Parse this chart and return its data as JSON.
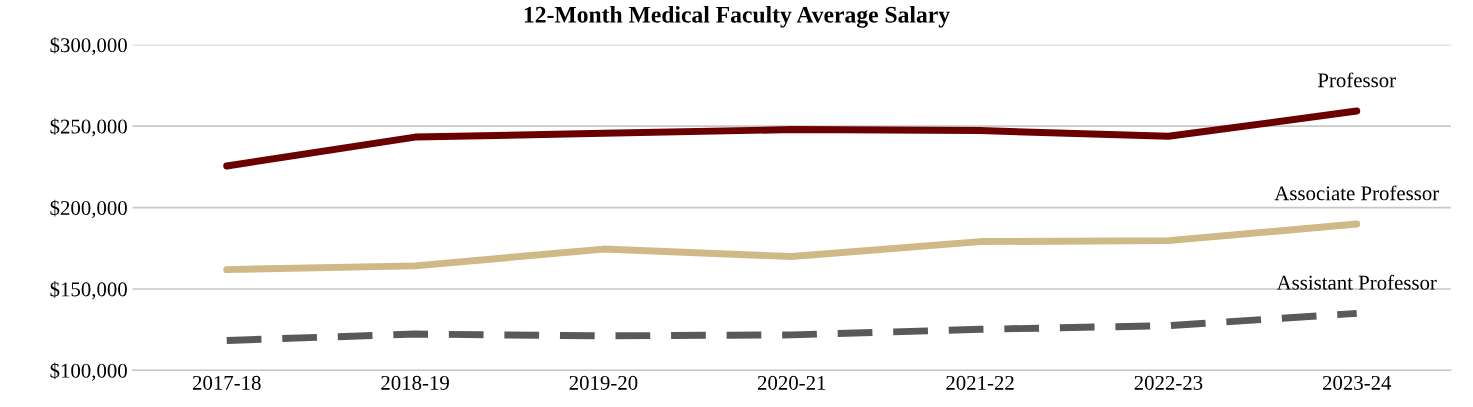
{
  "chart_data": {
    "type": "line",
    "title": "12-Month Medical Faculty Average Salary",
    "categories": [
      "2017-18",
      "2018-19",
      "2019-20",
      "2020-21",
      "2021-22",
      "2022-23",
      "2023-24"
    ],
    "series": [
      {
        "name": "Professor",
        "color": "#6b0000",
        "values": [
          225500,
          243300,
          245600,
          247900,
          247300,
          243800,
          259300
        ],
        "line_style": "solid"
      },
      {
        "name": "Associate Professor",
        "color": "#cfb987",
        "values": [
          161900,
          164200,
          174500,
          169900,
          179100,
          179700,
          189900
        ],
        "line_style": "solid"
      },
      {
        "name": "Assistant Professor",
        "color": "#595959",
        "values": [
          118400,
          122300,
          121200,
          121800,
          125200,
          127500,
          135000
        ],
        "line_style": "dashed"
      }
    ],
    "ylim": [
      100000,
      300000
    ],
    "yticks": [
      {
        "value": 100000,
        "label": "$100,000"
      },
      {
        "value": 150000,
        "label": "$150,000"
      },
      {
        "value": 200000,
        "label": "$200,000"
      },
      {
        "value": 250000,
        "label": "$250,000"
      },
      {
        "value": 300000,
        "label": "$300,000"
      }
    ],
    "grid": "y",
    "legend": false,
    "marker": "none"
  }
}
